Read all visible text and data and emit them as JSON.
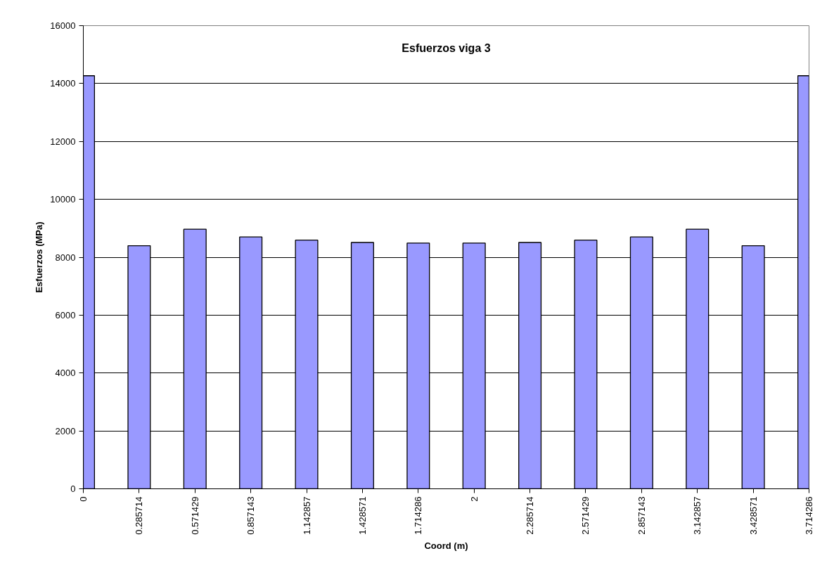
{
  "chart_data": {
    "type": "bar",
    "title": "Esfuerzos viga 3",
    "xlabel": "Coord (m)",
    "ylabel": "Esfuerzos (MPa)",
    "categories": [
      "0",
      "0.285714",
      "0.571429",
      "0.857143",
      "1.142857",
      "1.428571",
      "1.714286",
      "2",
      "2.285714",
      "2.571429",
      "2.857143",
      "3.142857",
      "3.428571",
      "3.714286"
    ],
    "values": [
      14270,
      8400,
      8970,
      8700,
      8590,
      8510,
      8490,
      8490,
      8510,
      8590,
      8700,
      8970,
      8400,
      14270
    ],
    "color": "#9999ff",
    "ylim": [
      0,
      16000
    ],
    "yticks": [
      0,
      2000,
      4000,
      6000,
      8000,
      10000,
      12000,
      14000,
      16000
    ],
    "grid": "y"
  }
}
